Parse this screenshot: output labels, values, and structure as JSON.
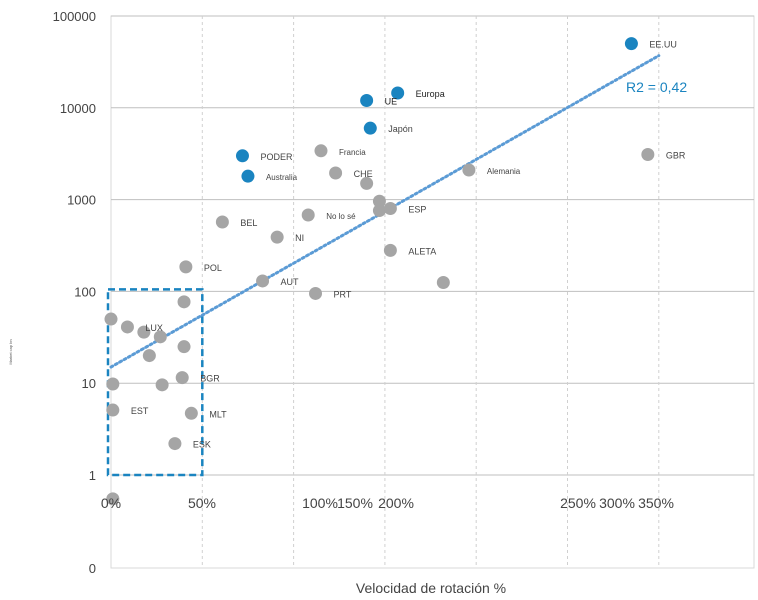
{
  "chart_data": {
    "type": "scatter",
    "xlabel": "Velocidad de rotación %",
    "ylabel": "Market cap bn",
    "y_scale": "log",
    "y_ticks": [
      "100000",
      "10000",
      "1000",
      "100",
      "10",
      "1",
      "0"
    ],
    "x_ticks": [
      "0%",
      "50%",
      "100%",
      "150%",
      "200%",
      "250%",
      "300%",
      "350%"
    ],
    "grid": true,
    "regions": {
      "blue": "#1a84c0",
      "grey": "#a5a5a5",
      "trend": "#5b9bd5",
      "box": "#1a84c0"
    },
    "trendline_label": "R2 = 0,42",
    "trendline": {
      "x0": 0,
      "y0": 15,
      "x1": 300,
      "y1": 37000
    },
    "highlight_box": {
      "x0": 0,
      "x1": 50,
      "y0": 1,
      "y1": 100
    },
    "series": [
      {
        "group": "blue",
        "points": [
          {
            "x": 285,
            "y": 50000,
            "label": "EE.UU"
          },
          {
            "x": 140,
            "y": 12000,
            "label": "UE"
          },
          {
            "x": 157,
            "y": 14500,
            "label": "Europa"
          },
          {
            "x": 142,
            "y": 6000,
            "label": "Japón"
          },
          {
            "x": 72,
            "y": 3000,
            "label": "PODER"
          },
          {
            "x": 75,
            "y": 1800,
            "label": "Australia"
          }
        ]
      },
      {
        "group": "grey",
        "points": [
          {
            "x": 115,
            "y": 3400,
            "label": "Francia"
          },
          {
            "x": 123,
            "y": 1950,
            "label": "CHE"
          },
          {
            "x": 140,
            "y": 1500,
            "label": ""
          },
          {
            "x": 196,
            "y": 2100,
            "label": "Alemania"
          },
          {
            "x": 294,
            "y": 3100,
            "label": "GBR"
          },
          {
            "x": 147,
            "y": 960,
            "label": ""
          },
          {
            "x": 147,
            "y": 760,
            "label": ""
          },
          {
            "x": 153,
            "y": 800,
            "label": "ESP"
          },
          {
            "x": 108,
            "y": 680,
            "label": "No lo sé"
          },
          {
            "x": 61,
            "y": 570,
            "label": "BEL"
          },
          {
            "x": 91,
            "y": 390,
            "label": "NI"
          },
          {
            "x": 153,
            "y": 280,
            "label": "ALETA"
          },
          {
            "x": 41,
            "y": 185,
            "label": "POL"
          },
          {
            "x": 83,
            "y": 130,
            "label": "AUT"
          },
          {
            "x": 182,
            "y": 125,
            "label": ""
          },
          {
            "x": 112,
            "y": 95,
            "label": "PRT"
          },
          {
            "x": 40,
            "y": 77,
            "label": ""
          },
          {
            "x": 0,
            "y": 50,
            "label": ""
          },
          {
            "x": 9,
            "y": 41,
            "label": "LUX"
          },
          {
            "x": 18,
            "y": 36,
            "label": ""
          },
          {
            "x": 27,
            "y": 32,
            "label": ""
          },
          {
            "x": 40,
            "y": 25,
            "label": ""
          },
          {
            "x": 21,
            "y": 20,
            "label": ""
          },
          {
            "x": 1,
            "y": 9.8,
            "label": ""
          },
          {
            "x": 28,
            "y": 9.6,
            "label": ""
          },
          {
            "x": 39,
            "y": 11.5,
            "label": "BGR"
          },
          {
            "x": 1,
            "y": 5.1,
            "label": "EST"
          },
          {
            "x": 44,
            "y": 4.7,
            "label": "MLT"
          },
          {
            "x": 35,
            "y": 2.2,
            "label": "ESK"
          },
          {
            "x": 1,
            "y": 0.55,
            "label": ""
          }
        ]
      }
    ]
  }
}
